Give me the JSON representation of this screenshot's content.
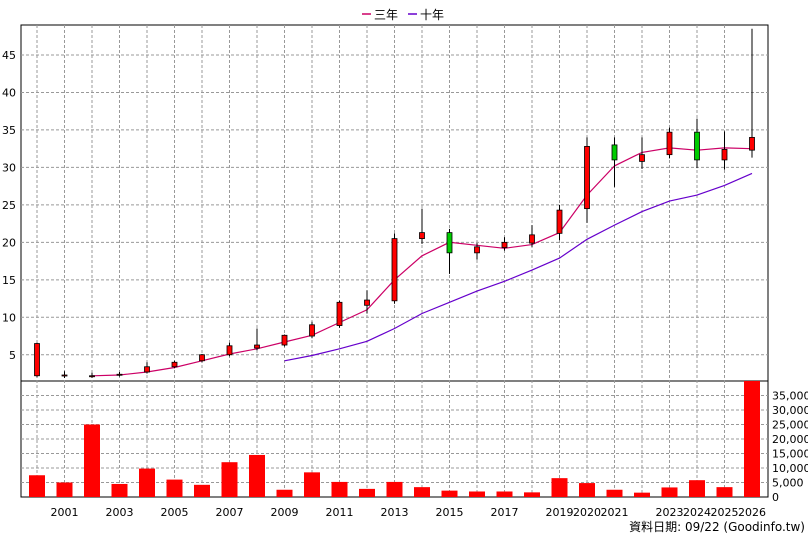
{
  "footer": {
    "text": "資料日期: 09/22 (Goodinfo.tw)"
  },
  "chart_data": {
    "type": "candlestick",
    "title": "",
    "legend": {
      "placement": "top-center",
      "entries": [
        {
          "name": "三年",
          "color": "#cc0066"
        },
        {
          "name": "十年",
          "color": "#6600cc"
        }
      ]
    },
    "colors": {
      "up": "#ff0000",
      "down": "#00cc00",
      "grid": "#999999",
      "volume": "#ff0000"
    },
    "grid": true,
    "price_axis": {
      "position": "left",
      "ylim": [
        1.5,
        49
      ],
      "ticks": [
        5,
        10,
        15,
        20,
        25,
        30,
        35,
        40,
        45
      ]
    },
    "volume_axis": {
      "position": "right",
      "ylim": [
        0,
        40000
      ],
      "ticks": [
        0,
        5000,
        10000,
        15000,
        20000,
        25000,
        30000,
        35000
      ],
      "tick_labels": [
        "0",
        "5,000",
        "10,000",
        "15,000",
        "20,000",
        "25,000",
        "30,000",
        "35,000"
      ]
    },
    "x_tick_labels": [
      "2001",
      "2003",
      "2005",
      "2007",
      "2009",
      "2011",
      "2013",
      "2015",
      "2017",
      "2019",
      "2020",
      "2021",
      "2023",
      "2024",
      "2025",
      "2026"
    ],
    "candles": [
      {
        "x": 2000,
        "open": 2.2,
        "close": 6.5,
        "high": 6.6,
        "low": 2.0
      },
      {
        "x": 2001,
        "open": 2.3,
        "close": 2.3,
        "high": 2.8,
        "low": 1.9
      },
      {
        "x": 2002,
        "open": 2.2,
        "close": 2.2,
        "high": 2.6,
        "low": 1.9
      },
      {
        "x": 2003,
        "open": 2.3,
        "close": 2.4,
        "high": 2.7,
        "low": 2.1
      },
      {
        "x": 2004,
        "open": 2.7,
        "close": 3.4,
        "high": 4.0,
        "low": 2.5
      },
      {
        "x": 2005,
        "open": 3.4,
        "close": 4.0,
        "high": 4.2,
        "low": 3.2
      },
      {
        "x": 2006,
        "open": 4.2,
        "close": 5.0,
        "high": 5.1,
        "low": 4.0
      },
      {
        "x": 2007,
        "open": 5.0,
        "close": 6.2,
        "high": 6.6,
        "low": 4.8
      },
      {
        "x": 2008,
        "open": 5.9,
        "close": 6.3,
        "high": 8.5,
        "low": 5.6
      },
      {
        "x": 2009,
        "open": 6.3,
        "close": 7.6,
        "high": 7.7,
        "low": 6.1
      },
      {
        "x": 2010,
        "open": 7.5,
        "close": 9.0,
        "high": 9.4,
        "low": 7.2
      },
      {
        "x": 2011,
        "open": 8.9,
        "close": 12.0,
        "high": 12.2,
        "low": 8.6
      },
      {
        "x": 2012,
        "open": 11.6,
        "close": 12.3,
        "high": 13.6,
        "low": 10.5
      },
      {
        "x": 2013,
        "open": 12.2,
        "close": 20.5,
        "high": 21.2,
        "low": 11.8
      },
      {
        "x": 2014,
        "open": 20.5,
        "close": 21.3,
        "high": 24.5,
        "low": 19.8
      },
      {
        "x": 2015,
        "open": 21.3,
        "close": 18.6,
        "high": 21.8,
        "low": 15.8
      },
      {
        "x": 2016,
        "open": 18.6,
        "close": 19.4,
        "high": 19.9,
        "low": 17.7
      },
      {
        "x": 2017,
        "open": 19.3,
        "close": 20.0,
        "high": 20.7,
        "low": 18.9
      },
      {
        "x": 2018,
        "open": 19.9,
        "close": 21.0,
        "high": 22.3,
        "low": 19.4
      },
      {
        "x": 2019,
        "open": 21.2,
        "close": 24.3,
        "high": 25.0,
        "low": 20.3
      },
      {
        "x": 2020,
        "open": 24.5,
        "close": 32.8,
        "high": 34.0,
        "low": 22.6
      },
      {
        "x": 2021,
        "open": 33.0,
        "close": 31.0,
        "high": 34.0,
        "low": 27.4
      },
      {
        "x": 2022,
        "open": 30.8,
        "close": 31.7,
        "high": 34.0,
        "low": 29.8
      },
      {
        "x": 2023,
        "open": 31.7,
        "close": 34.7,
        "high": 35.3,
        "low": 31.2
      },
      {
        "x": 2024,
        "open": 34.7,
        "close": 31.0,
        "high": 36.5,
        "low": 29.9
      },
      {
        "x": 2025,
        "open": 31.0,
        "close": 32.4,
        "high": 34.8,
        "low": 29.7
      },
      {
        "x": 2026,
        "open": 32.3,
        "close": 34.0,
        "high": 48.5,
        "low": 31.3
      }
    ],
    "series": [
      {
        "name": "三年",
        "color": "#cc0066",
        "x": [
          2002,
          2003,
          2004,
          2005,
          2006,
          2007,
          2008,
          2009,
          2010,
          2011,
          2012,
          2013,
          2014,
          2015,
          2016,
          2017,
          2018,
          2019,
          2020,
          2021,
          2022,
          2023,
          2024,
          2025,
          2026
        ],
        "values": [
          2.2,
          2.3,
          2.7,
          3.3,
          4.2,
          5.1,
          5.8,
          6.7,
          7.6,
          9.3,
          11.0,
          15.0,
          18.2,
          20.0,
          19.6,
          19.2,
          19.7,
          21.3,
          26.3,
          30.2,
          32.0,
          32.6,
          32.3,
          32.6,
          32.5
        ]
      },
      {
        "name": "十年",
        "color": "#6600cc",
        "x": [
          2009,
          2010,
          2011,
          2012,
          2013,
          2014,
          2015,
          2016,
          2017,
          2018,
          2019,
          2020,
          2021,
          2022,
          2023,
          2024,
          2025,
          2026
        ],
        "values": [
          4.2,
          4.9,
          5.8,
          6.8,
          8.5,
          10.5,
          12.0,
          13.5,
          14.8,
          16.3,
          17.9,
          20.4,
          22.3,
          24.1,
          25.5,
          26.3,
          27.6,
          29.2
        ]
      }
    ],
    "volume": {
      "x": [
        2000,
        2001,
        2002,
        2003,
        2004,
        2005,
        2006,
        2007,
        2008,
        2009,
        2010,
        2011,
        2012,
        2013,
        2014,
        2015,
        2016,
        2017,
        2018,
        2019,
        2020,
        2021,
        2022,
        2023,
        2024,
        2025,
        2026
      ],
      "values": [
        7500,
        5000,
        25000,
        4500,
        9800,
        6000,
        4200,
        12000,
        14500,
        2500,
        8500,
        5200,
        2800,
        5200,
        3400,
        2200,
        1900,
        1900,
        1600,
        6500,
        4800,
        2500,
        1500,
        3300,
        5800,
        3400,
        40000
      ]
    }
  }
}
